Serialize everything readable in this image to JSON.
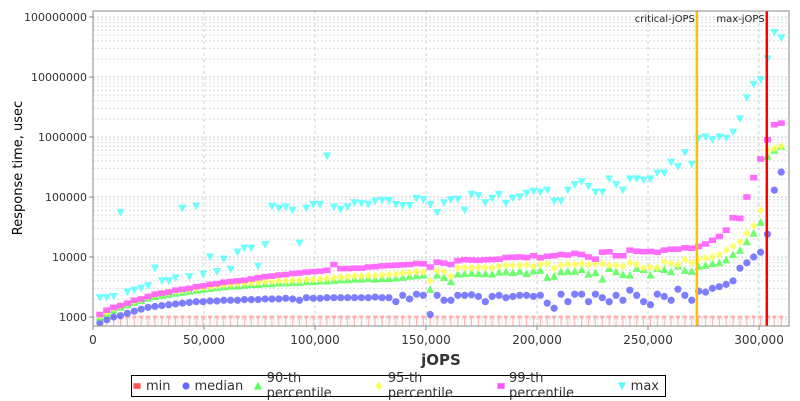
{
  "chart_data": {
    "type": "scatter",
    "title": "",
    "xlabel": "jOPS",
    "ylabel": "Response time, usec",
    "yscale": "log",
    "xlim": [
      0,
      313500
    ],
    "ylim": [
      700,
      126000000
    ],
    "grid": true,
    "legend_position": "bottom",
    "x_ticks": [
      "0",
      "50,000",
      "100,000",
      "150,000",
      "200,000",
      "250,000",
      "300,000"
    ],
    "x_tick_values": [
      0,
      50000,
      100000,
      150000,
      200000,
      250000,
      300000
    ],
    "y_ticks": [
      "1000",
      "10000",
      "100000",
      "1000000",
      "10000000",
      "100000000"
    ],
    "y_tick_values": [
      1000,
      10000,
      100000,
      1000000,
      10000000,
      100000000
    ],
    "x_start": 3100,
    "x_step": 3100,
    "markers": [
      {
        "label": "critical-jOPS",
        "x": 272000,
        "color": "#ffc000"
      },
      {
        "label": "max-jOPS",
        "x": 303500,
        "color": "#ff0000"
      }
    ],
    "series": [
      {
        "name": "min",
        "color": "#ff5555",
        "shape": "square-bar",
        "constant": 1000
      },
      {
        "name": "median",
        "color": "#6666ff",
        "shape": "circle",
        "values": [
          800,
          900,
          1000,
          1050,
          1150,
          1250,
          1350,
          1450,
          1500,
          1550,
          1600,
          1650,
          1700,
          1750,
          1800,
          1800,
          1850,
          1850,
          1900,
          1900,
          1900,
          1950,
          1950,
          1950,
          2000,
          2000,
          2000,
          2050,
          2000,
          1900,
          2100,
          2050,
          2050,
          2100,
          2100,
          2100,
          2100,
          2100,
          2100,
          2100,
          2150,
          2100,
          2100,
          1800,
          2300,
          2000,
          2400,
          2300,
          1100,
          2300,
          1900,
          1900,
          2300,
          2300,
          2350,
          2200,
          1800,
          2200,
          2300,
          2100,
          2200,
          2300,
          2300,
          2200,
          2300,
          1700,
          1400,
          2400,
          1800,
          2400,
          2400,
          1800,
          2400,
          2100,
          1800,
          2300,
          1900,
          2800,
          2300,
          1800,
          1600,
          2400,
          2200,
          1900,
          2900,
          2300,
          1900,
          2700,
          2600,
          3000,
          3200,
          3500,
          4000,
          6500,
          8000,
          10000,
          12000,
          24000,
          130000,
          260000
        ]
      },
      {
        "name": "90-th percentile",
        "color": "#55ff55",
        "shape": "triangle-up",
        "values": [
          1000,
          1150,
          1300,
          1450,
          1600,
          1750,
          1900,
          2050,
          2200,
          2300,
          2400,
          2500,
          2600,
          2700,
          2800,
          2900,
          3000,
          3100,
          3200,
          3300,
          3300,
          3400,
          3500,
          3500,
          3600,
          3600,
          3700,
          3700,
          3800,
          3800,
          3900,
          3900,
          4000,
          4000,
          4100,
          4200,
          4200,
          4300,
          4300,
          4400,
          4300,
          4400,
          4400,
          4500,
          4600,
          4800,
          4900,
          5000,
          2900,
          5000,
          4600,
          3900,
          5200,
          5300,
          5400,
          5300,
          5300,
          5200,
          5600,
          5700,
          5500,
          5800,
          5300,
          5900,
          6000,
          4600,
          4800,
          5700,
          5800,
          5800,
          6200,
          5200,
          5500,
          4300,
          6500,
          5700,
          5100,
          5000,
          6500,
          6200,
          5000,
          6500,
          6200,
          5700,
          7100,
          6000,
          5800,
          7000,
          7300,
          7800,
          8000,
          9000,
          11000,
          13000,
          18000,
          25000,
          38000,
          480000,
          600000,
          700000
        ]
      },
      {
        "name": "95-th percentile",
        "color": "#ffff55",
        "shape": "diamond",
        "values": [
          1050,
          1200,
          1400,
          1550,
          1700,
          1850,
          2000,
          2200,
          2350,
          2500,
          2600,
          2700,
          2800,
          2900,
          3000,
          3100,
          3200,
          3300,
          3400,
          3500,
          3600,
          3700,
          3700,
          3800,
          3900,
          3900,
          4000,
          4000,
          4100,
          4100,
          4200,
          4200,
          4300,
          4400,
          4500,
          4600,
          4700,
          4800,
          4800,
          4900,
          4900,
          5000,
          5100,
          5200,
          5400,
          5500,
          5700,
          5600,
          4000,
          5900,
          5700,
          4800,
          6600,
          6700,
          6600,
          6700,
          6700,
          6600,
          7000,
          7300,
          7200,
          7200,
          7400,
          7000,
          7600,
          7700,
          6500,
          7300,
          7600,
          7500,
          7700,
          7400,
          7800,
          7700,
          7300,
          7300,
          7000,
          8000,
          7500,
          6600,
          6800,
          6600,
          8300,
          7800,
          7500,
          9000,
          8000,
          9200,
          9600,
          10000,
          11000,
          13000,
          15000,
          18000,
          25000,
          33000,
          60000,
          600000,
          650000,
          700000
        ]
      },
      {
        "name": "99-th percentile",
        "color": "#ff55ff",
        "shape": "square",
        "values": [
          1100,
          1300,
          1450,
          1550,
          1700,
          1900,
          2000,
          2200,
          2400,
          2500,
          2600,
          2800,
          2900,
          3000,
          3200,
          3300,
          3500,
          3600,
          3800,
          3900,
          4000,
          4100,
          4300,
          4500,
          4700,
          4800,
          5000,
          5100,
          5300,
          5400,
          5600,
          5700,
          5800,
          6000,
          7500,
          6400,
          6400,
          6500,
          6500,
          6800,
          6900,
          7100,
          7200,
          7300,
          7400,
          7500,
          7800,
          7700,
          6800,
          8200,
          7900,
          7500,
          8700,
          9000,
          8900,
          8800,
          9000,
          9100,
          9200,
          9800,
          9900,
          10000,
          9800,
          10500,
          9700,
          10300,
          10500,
          11000,
          10800,
          11500,
          11000,
          10000,
          9200,
          12000,
          12200,
          10500,
          10500,
          13000,
          12500,
          12300,
          12400,
          12000,
          13000,
          13500,
          13500,
          14200,
          14000,
          15000,
          16500,
          19000,
          22000,
          28000,
          45000,
          44000,
          100000,
          210000,
          430000,
          900000,
          1600000,
          1700000
        ]
      },
      {
        "name": "max",
        "color": "#55ffff",
        "shape": "triangle-down",
        "values": [
          2100,
          2100,
          2200,
          55000,
          2600,
          2800,
          3000,
          3300,
          6500,
          4000,
          4000,
          4500,
          65000,
          4700,
          70000,
          5200,
          10000,
          5700,
          9200,
          6200,
          12000,
          14000,
          14000,
          7000,
          16000,
          70000,
          65000,
          68000,
          60000,
          17000,
          65000,
          75000,
          75000,
          480000,
          68000,
          62000,
          68000,
          80000,
          78000,
          75000,
          85000,
          88000,
          87000,
          75000,
          72000,
          72000,
          95000,
          90000,
          75000,
          55000,
          80000,
          90000,
          92000,
          60000,
          110000,
          105000,
          80000,
          95000,
          110000,
          78000,
          95000,
          100000,
          115000,
          125000,
          120000,
          130000,
          85000,
          85000,
          130000,
          160000,
          180000,
          150000,
          120000,
          120000,
          200000,
          160000,
          130000,
          200000,
          200000,
          190000,
          200000,
          250000,
          250000,
          380000,
          320000,
          550000,
          350000,
          950000,
          1000000,
          900000,
          1000000,
          950000,
          1200000,
          2000000,
          4500000,
          7500000,
          9000000,
          20000000,
          55000000,
          45000000
        ]
      }
    ]
  }
}
